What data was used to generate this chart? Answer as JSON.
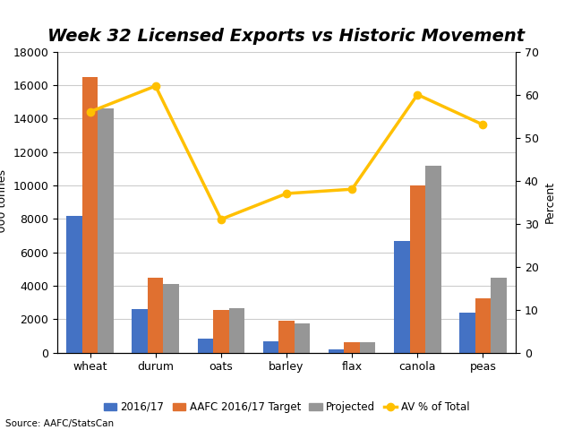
{
  "title": "Week 32 Licensed Exports vs Historic Movement",
  "categories": [
    "wheat",
    "durum",
    "oats",
    "barley",
    "flax",
    "canola",
    "peas"
  ],
  "bar2016": [
    8200,
    2600,
    850,
    650,
    200,
    6650,
    2400
  ],
  "bar_target": [
    16500,
    4500,
    2550,
    1900,
    600,
    10000,
    3250
  ],
  "bar_projected": [
    14600,
    4100,
    2650,
    1750,
    600,
    11200,
    4500
  ],
  "line_av_pct": [
    56,
    62,
    31,
    37,
    38,
    60,
    53
  ],
  "bar_color_2016": "#4472c4",
  "bar_color_target": "#e07030",
  "bar_color_projected": "#969696",
  "line_color": "#ffc000",
  "ylim_left": [
    0,
    18000
  ],
  "ylim_right": [
    0,
    70
  ],
  "ylabel_left": "'000 tonnes",
  "ylabel_right": "Percent",
  "source": "Source: AAFC/StatsCan",
  "legend_labels": [
    "2016/17",
    "AAFC 2016/17 Target",
    "Projected",
    "AV % of Total"
  ],
  "title_fontsize": 14,
  "axis_fontsize": 9,
  "tick_fontsize": 9,
  "background_color": "#ffffff",
  "grid_color": "#cccccc"
}
